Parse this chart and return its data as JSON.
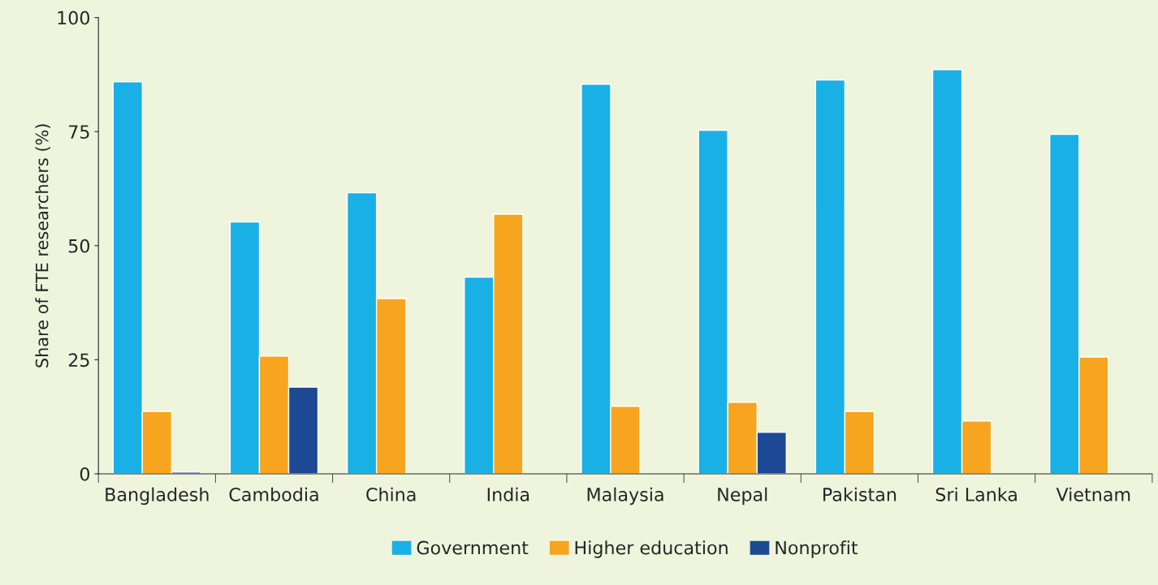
{
  "chart_data": {
    "type": "bar",
    "ylabel": "Share of FTE researchers (%)",
    "categories": [
      "Bangladesh",
      "Cambodia",
      "China",
      "India",
      "Malaysia",
      "Nepal",
      "Pakistan",
      "Sri Lanka",
      "Vietnam"
    ],
    "series": [
      {
        "name": "Government",
        "color": "#19b0e6",
        "values": [
          85.9,
          55.2,
          61.6,
          43.1,
          85.4,
          75.3,
          86.3,
          88.6,
          74.4
        ]
      },
      {
        "name": "Higher education",
        "color": "#f7a41e",
        "values": [
          13.7,
          25.8,
          38.4,
          56.9,
          14.8,
          15.7,
          13.7,
          11.6,
          25.6
        ]
      },
      {
        "name": "Nonprofit",
        "color": "#1d4894",
        "values": [
          0.4,
          19.0,
          null,
          null,
          null,
          9.1,
          null,
          null,
          null
        ]
      }
    ],
    "ylim": [
      0,
      100
    ],
    "yticks": [
      0,
      25,
      50,
      75,
      100
    ],
    "grid": false,
    "legend": "bottom"
  }
}
